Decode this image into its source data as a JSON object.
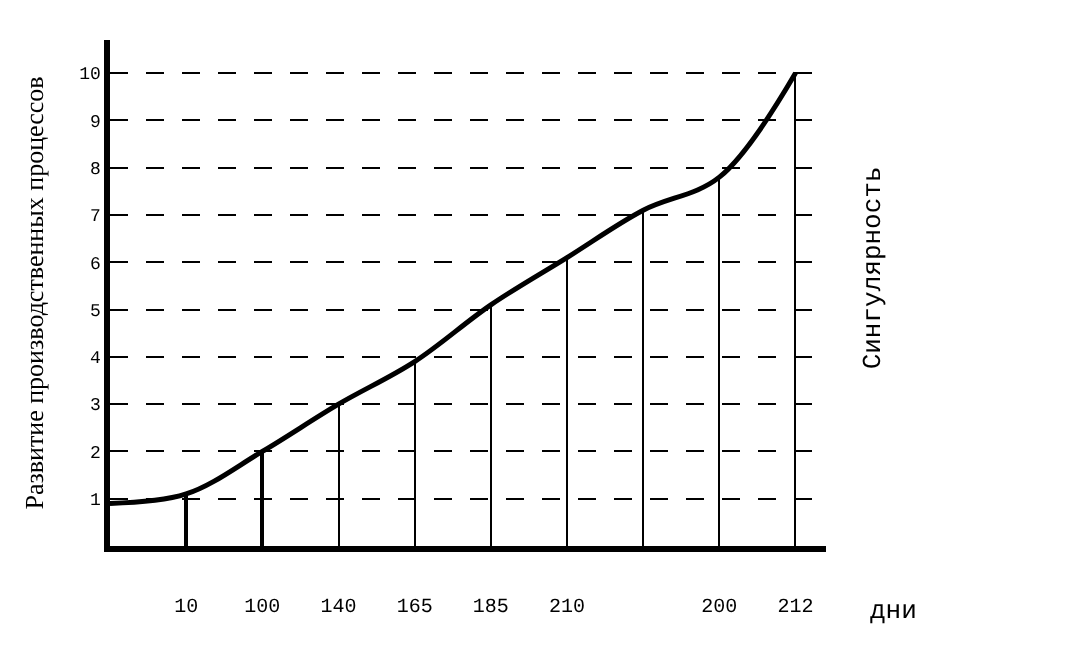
{
  "chart_data": {
    "type": "line",
    "ylabel": "Развитие производственных процессов",
    "xlabel": "дни",
    "categories": [
      null,
      "10",
      "100",
      "140",
      "165",
      "185",
      "210",
      null,
      "200",
      "212"
    ],
    "series": [
      {
        "color": "#000000",
        "values": [
          0.9,
          1.1,
          2.0,
          3.0,
          3.9,
          5.1,
          6.1,
          7.1,
          7.8,
          10
        ]
      },
      {
        "type": "bar",
        "color": "#000000",
        "values": [
          null,
          1.1,
          2.0,
          3.0,
          3.9,
          5.1,
          6.1,
          7.1,
          7.8,
          10
        ]
      }
    ],
    "ylim": [
      0,
      10.7
    ],
    "yticks": [
      1,
      2,
      3,
      4,
      5,
      6,
      7,
      8,
      9,
      10
    ],
    "grid": "y",
    "marker": "none",
    "line_style": "solid",
    "annotations": [
      "Сингулярность"
    ]
  }
}
